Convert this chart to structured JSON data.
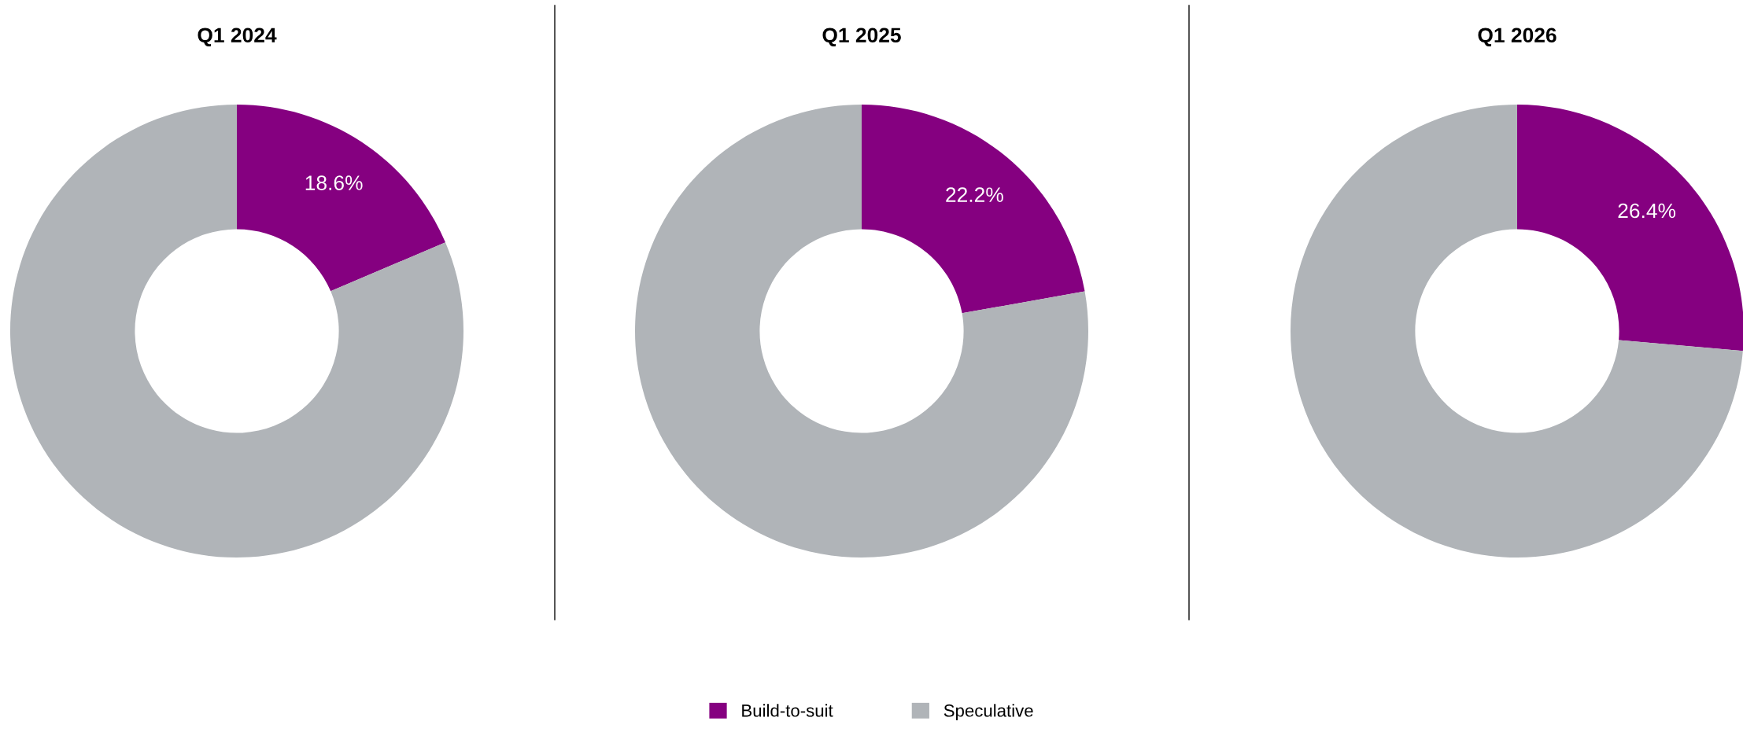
{
  "chart_data": [
    {
      "type": "donut",
      "title": "Q1 2024",
      "categories": [
        null,
        null
      ],
      "values": [
        18.6,
        81.4
      ],
      "colors": [
        "#850080",
        "#b0b4b8"
      ],
      "value_labels": [
        "18.6%",
        null
      ],
      "legend": false
    },
    {
      "type": "donut",
      "title": "Q1 2025",
      "categories": [
        "Build-to-suit",
        "Speculative"
      ],
      "values": [
        22.2,
        77.8
      ],
      "colors": [
        "#850080",
        "#b0b4b8"
      ],
      "value_labels": [
        "22.2%",
        null
      ],
      "legend": "bottom"
    },
    {
      "type": "donut",
      "title": "Q1 2026",
      "categories": [
        null,
        null
      ],
      "values": [
        26.4,
        73.6
      ],
      "colors": [
        "#850080",
        "#b0b4b8"
      ],
      "value_labels": [
        "26.4%",
        null
      ],
      "legend": false
    }
  ]
}
